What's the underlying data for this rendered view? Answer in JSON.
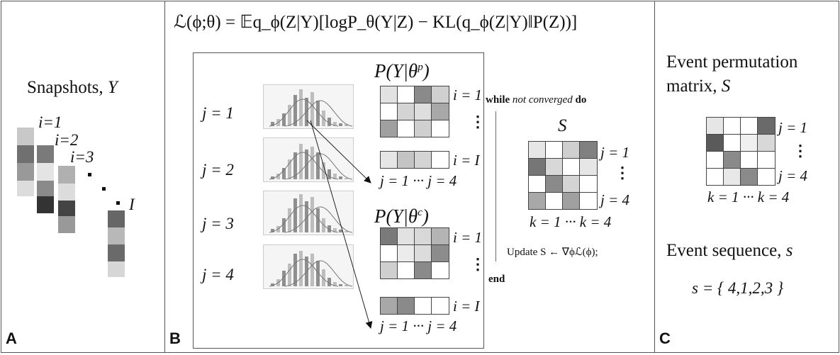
{
  "panel_a": {
    "label": "A",
    "title_text": "Snapshots, ",
    "title_var": "Y",
    "labels": [
      "i=1",
      "i=2",
      "i=3",
      "I"
    ]
  },
  "panel_b": {
    "label": "B",
    "equation": "ℒ(ϕ;θ) = 𝔼q_ϕ(Z|Y)[logP_θ(Y|Z) − KL(q_ϕ(Z|Y)‖P(Z))]",
    "j_labels": [
      "j = 1",
      "j = 2",
      "j = 3",
      "j = 4"
    ],
    "mat_p_title": "P(Y|θ",
    "mat_p_sup": "p",
    "mat_c_title": "P(Y|θ",
    "mat_c_sup": "c",
    "i1": "i = 1",
    "iI": "i = I",
    "j_range": "j = 1 ··· j = 4",
    "algo_while": "while",
    "algo_not_converged": "not converged",
    "algo_do": "do",
    "algo_S": "S",
    "algo_j1": "j = 1",
    "algo_j4": "j = 4",
    "algo_k_range": "k = 1 ··· k = 4",
    "algo_update": "Update S ← ∇ϕℒ(ϕ);",
    "algo_end": "end"
  },
  "panel_c": {
    "label": "C",
    "perm_title_line1": "Event permutation",
    "perm_title_line2": "matrix, ",
    "perm_var": "S",
    "j1": "j = 1",
    "j4": "j = 4",
    "k_range": "k = 1 ··· k = 4",
    "seq_title": "Event sequence, ",
    "seq_var": "s",
    "seq_value": "s = { 4,1,2,3 }"
  }
}
